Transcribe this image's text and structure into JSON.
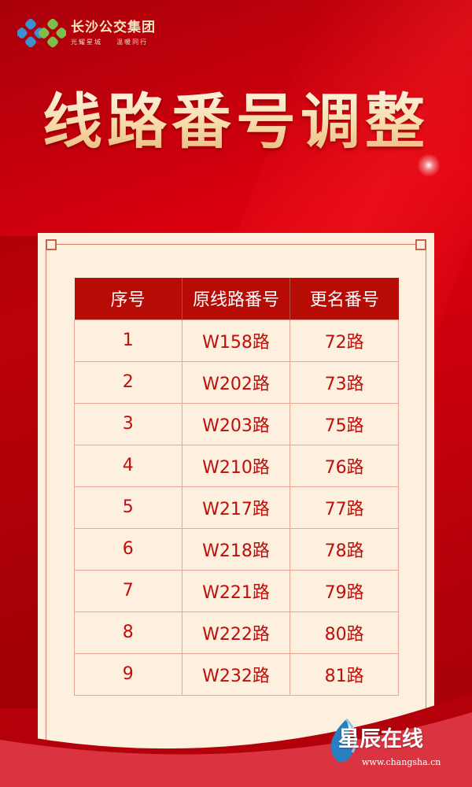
{
  "brand": {
    "name": "长沙公交集团",
    "slogan": "光耀星城    温暖同行"
  },
  "title": "线路番号调整",
  "table": {
    "headers": [
      "序号",
      "原线路番号",
      "更名番号"
    ],
    "rows": [
      [
        "1",
        "W158路",
        "72路"
      ],
      [
        "2",
        "W202路",
        "73路"
      ],
      [
        "3",
        "W203路",
        "75路"
      ],
      [
        "4",
        "W210路",
        "76路"
      ],
      [
        "5",
        "W217路",
        "77路"
      ],
      [
        "6",
        "W218路",
        "78路"
      ],
      [
        "7",
        "W221路",
        "79路"
      ],
      [
        "8",
        "W222路",
        "80路"
      ],
      [
        "9",
        "W232路",
        "81路"
      ]
    ]
  },
  "watermark": {
    "name": "星辰在线",
    "url": "www.changsha.cn"
  },
  "colors": {
    "background": "#d7000f",
    "header": "#b70c05",
    "panel": "#fef0df",
    "text": "#c00e0a"
  }
}
